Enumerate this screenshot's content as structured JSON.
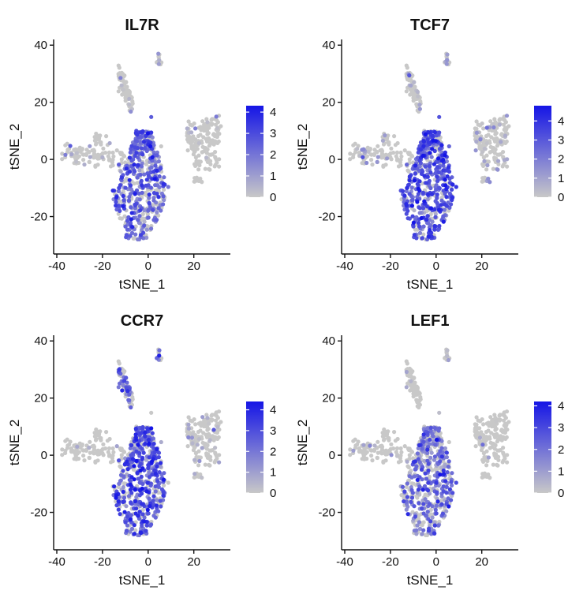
{
  "chart_data": [
    {
      "type": "scatter",
      "title": "IL7R",
      "xlabel": "tSNE_1",
      "ylabel": "tSNE_2",
      "xlim": [
        -40,
        36
      ],
      "ylim": [
        -32,
        42
      ],
      "xticks": [
        -40,
        -20,
        0,
        20
      ],
      "yticks": [
        -20,
        0,
        20,
        40
      ],
      "legend": {
        "position": "right",
        "min": 0,
        "max": 4.3,
        "ticks": [
          0,
          1,
          2,
          3,
          4
        ],
        "low_color": "#c8c8c8",
        "high_color": "#1515e6"
      },
      "expression_by_cluster": {
        "main_mass": 2.3,
        "left_arm": 0.3,
        "top_cluster": 0.6,
        "right_cluster": 0.25
      }
    },
    {
      "type": "scatter",
      "title": "TCF7",
      "xlabel": "tSNE_1",
      "ylabel": "tSNE_2",
      "xlim": [
        -40,
        36
      ],
      "ylim": [
        -32,
        42
      ],
      "xticks": [
        -40,
        -20,
        0,
        20
      ],
      "yticks": [
        -20,
        0,
        20,
        40
      ],
      "legend": {
        "position": "right",
        "min": 0,
        "max": 4.8,
        "ticks": [
          0,
          1,
          2,
          3,
          4
        ],
        "low_color": "#c8c8c8",
        "high_color": "#1515e6"
      },
      "expression_by_cluster": {
        "main_mass": 3.0,
        "left_arm": 0.7,
        "top_cluster": 0.9,
        "right_cluster": 0.6
      }
    },
    {
      "type": "scatter",
      "title": "CCR7",
      "xlabel": "tSNE_1",
      "ylabel": "tSNE_2",
      "xlim": [
        -40,
        36
      ],
      "ylim": [
        -32,
        42
      ],
      "xticks": [
        -40,
        -20,
        0,
        20
      ],
      "yticks": [
        -20,
        0,
        20,
        40
      ],
      "legend": {
        "position": "right",
        "min": 0,
        "max": 4.4,
        "ticks": [
          0,
          1,
          2,
          3,
          4
        ],
        "low_color": "#c8c8c8",
        "high_color": "#1515e6"
      },
      "expression_by_cluster": {
        "main_mass": 2.7,
        "left_arm": 0.4,
        "top_cluster": 2.0,
        "right_cluster": 0.4
      }
    },
    {
      "type": "scatter",
      "title": "LEF1",
      "xlabel": "tSNE_1",
      "ylabel": "tSNE_2",
      "xlim": [
        -40,
        36
      ],
      "ylim": [
        -32,
        42
      ],
      "xticks": [
        -40,
        -20,
        0,
        20
      ],
      "yticks": [
        -20,
        0,
        20,
        40
      ],
      "legend": {
        "position": "right",
        "min": 0,
        "max": 4.2,
        "ticks": [
          0,
          1,
          2,
          3,
          4
        ],
        "low_color": "#c8c8c8",
        "high_color": "#1515e6"
      },
      "expression_by_cluster": {
        "main_mass": 1.9,
        "left_arm": 0.25,
        "top_cluster": 0.1,
        "right_cluster": 0.05
      }
    }
  ],
  "colors": {
    "axis": "#111111",
    "background": "#ffffff"
  }
}
